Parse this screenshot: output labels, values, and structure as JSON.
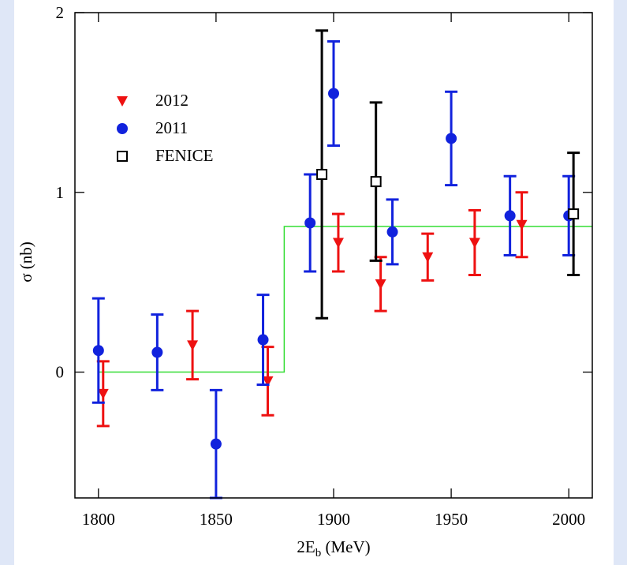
{
  "chart_data": {
    "type": "errorbar",
    "xlabel": [
      "2E",
      "b",
      " (MeV)"
    ],
    "ylabel": "σ (nb)",
    "xlim": [
      1790,
      2010
    ],
    "ylim": [
      -0.7,
      2
    ],
    "xticks": [
      1800,
      1850,
      1900,
      1950,
      2000
    ],
    "yticks": [
      0,
      1,
      2
    ],
    "legend": "upper left",
    "step": {
      "color": "#33dd33",
      "x": [
        1800,
        1879,
        1879,
        2010
      ],
      "values": [
        0,
        0,
        0.81,
        0.81
      ]
    },
    "series": [
      {
        "name": "2012",
        "color": "#ee1111",
        "marker": "triangle-down",
        "x": [
          1802,
          1840,
          1872,
          1902,
          1920,
          1940,
          1960,
          1980
        ],
        "values": [
          -0.12,
          0.15,
          -0.05,
          0.72,
          0.49,
          0.64,
          0.72,
          0.82
        ],
        "errors": [
          0.18,
          0.19,
          0.19,
          0.16,
          0.15,
          0.13,
          0.18,
          0.18
        ]
      },
      {
        "name": "2011",
        "color": "#1122dd",
        "marker": "circle",
        "x": [
          1800,
          1825,
          1850,
          1870,
          1890,
          1900,
          1925,
          1950,
          1975,
          2000
        ],
        "values": [
          0.12,
          0.11,
          -0.4,
          0.18,
          0.83,
          1.55,
          0.78,
          1.3,
          0.87,
          0.87
        ],
        "errors": [
          0.29,
          0.21,
          0.3,
          0.25,
          0.27,
          0.29,
          0.18,
          0.26,
          0.22,
          0.22
        ]
      },
      {
        "name": "FENICE",
        "color": "#000000",
        "marker": "square",
        "x": [
          1895,
          1918,
          2002
        ],
        "values": [
          1.1,
          1.06,
          0.88
        ],
        "errors": [
          0.8,
          0.44,
          0.34
        ]
      }
    ]
  }
}
